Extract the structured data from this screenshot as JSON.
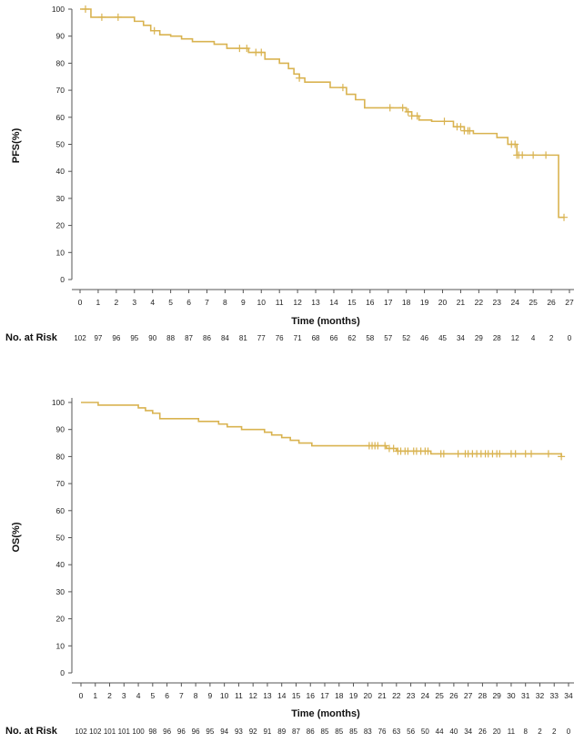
{
  "chart_data": [
    {
      "type": "line",
      "step": true,
      "color": "#d9b350",
      "ylabel": "PFS(%)",
      "xlabel": "Time (months)",
      "ylim": [
        0,
        100
      ],
      "xlim": [
        0,
        27
      ],
      "yticks": [
        "0",
        "10",
        "20",
        "30",
        "40",
        "50",
        "60",
        "70",
        "80",
        "90",
        "100"
      ],
      "xticks": [
        "0",
        "1",
        "2",
        "3",
        "4",
        "5",
        "6",
        "7",
        "8",
        "9",
        "10",
        "11",
        "12",
        "13",
        "14",
        "15",
        "16",
        "17",
        "18",
        "19",
        "20",
        "21",
        "22",
        "23",
        "24",
        "25",
        "26",
        "27"
      ],
      "series": [
        {
          "name": "PFS",
          "x": [
            0,
            0.6,
            3,
            3.5,
            3.9,
            4.4,
            5,
            5.6,
            6.2,
            7.4,
            8.1,
            9.3,
            10.2,
            11,
            11.5,
            11.8,
            12.1,
            12.4,
            12.7,
            13.8,
            14.7,
            15.2,
            15.7,
            18,
            18.3,
            18.7,
            19.4,
            20.6,
            21.2,
            21.7,
            23,
            23.6,
            24.1,
            26.4,
            26.7
          ],
          "values": [
            100,
            97,
            95.5,
            94,
            92,
            90.5,
            90,
            89,
            88,
            87,
            85.5,
            84,
            81.5,
            80,
            78,
            76,
            74.5,
            73,
            73,
            71,
            68.5,
            66.5,
            63.5,
            62,
            60.5,
            59,
            58.5,
            56.5,
            55,
            54,
            52.5,
            50,
            46,
            23,
            23
          ]
        }
      ],
      "censor_x": [
        0.3,
        1.2,
        2.1,
        4.1,
        8.8,
        9.2,
        9.7,
        10,
        12.1,
        14.5,
        17.1,
        17.8,
        18.1,
        18.3,
        18.6,
        20.1,
        20.8,
        21,
        21.2,
        21.4,
        21.5,
        23.8,
        24,
        24.1,
        24.2,
        24.4,
        25,
        25.7,
        26.7
      ],
      "risk_label": "No. at Risk",
      "risk_values": [
        "102",
        "97",
        "96",
        "95",
        "90",
        "88",
        "87",
        "86",
        "84",
        "81",
        "77",
        "76",
        "71",
        "68",
        "66",
        "62",
        "58",
        "57",
        "52",
        "46",
        "45",
        "34",
        "29",
        "28",
        "12",
        "4",
        "2",
        "0"
      ]
    },
    {
      "type": "line",
      "step": true,
      "color": "#d9b350",
      "ylabel": "OS(%)",
      "xlabel": "Time (months)",
      "ylim": [
        0,
        100
      ],
      "xlim": [
        0,
        34
      ],
      "yticks": [
        "0",
        "10",
        "20",
        "30",
        "40",
        "50",
        "60",
        "70",
        "80",
        "90",
        "100"
      ],
      "xticks": [
        "0",
        "1",
        "2",
        "3",
        "4",
        "5",
        "6",
        "7",
        "8",
        "9",
        "10",
        "11",
        "12",
        "13",
        "14",
        "15",
        "16",
        "17",
        "18",
        "19",
        "20",
        "21",
        "22",
        "23",
        "24",
        "25",
        "26",
        "27",
        "28",
        "29",
        "30",
        "31",
        "32",
        "33",
        "34"
      ],
      "series": [
        {
          "name": "OS",
          "x": [
            0,
            1.2,
            4,
            4.5,
            5,
            5.5,
            8.2,
            9.6,
            10.2,
            11.2,
            12.8,
            13.3,
            14,
            14.6,
            15.2,
            16.1,
            21.3,
            22,
            24.4,
            33.5
          ],
          "values": [
            100,
            99,
            98,
            97,
            96,
            94,
            93,
            92,
            91,
            90,
            89,
            88,
            87,
            86,
            85,
            84,
            83,
            82,
            81,
            80
          ]
        }
      ],
      "censor_x": [
        20.1,
        20.3,
        20.5,
        20.7,
        21.2,
        21.5,
        21.8,
        22.1,
        22.3,
        22.6,
        22.8,
        23.2,
        23.4,
        23.7,
        24,
        24.2,
        25.1,
        25.3,
        26.3,
        26.8,
        27,
        27.3,
        27.6,
        27.9,
        28.2,
        28.4,
        28.7,
        29,
        29.2,
        30,
        30.3,
        31,
        31.4,
        32.6,
        33.5
      ],
      "risk_label": "No. at Risk",
      "risk_values": [
        "102",
        "102",
        "101",
        "101",
        "100",
        "98",
        "96",
        "96",
        "96",
        "95",
        "94",
        "93",
        "92",
        "91",
        "89",
        "87",
        "86",
        "85",
        "85",
        "85",
        "83",
        "76",
        "63",
        "56",
        "50",
        "44",
        "40",
        "34",
        "26",
        "20",
        "11",
        "8",
        "2",
        "2",
        "0"
      ]
    }
  ]
}
